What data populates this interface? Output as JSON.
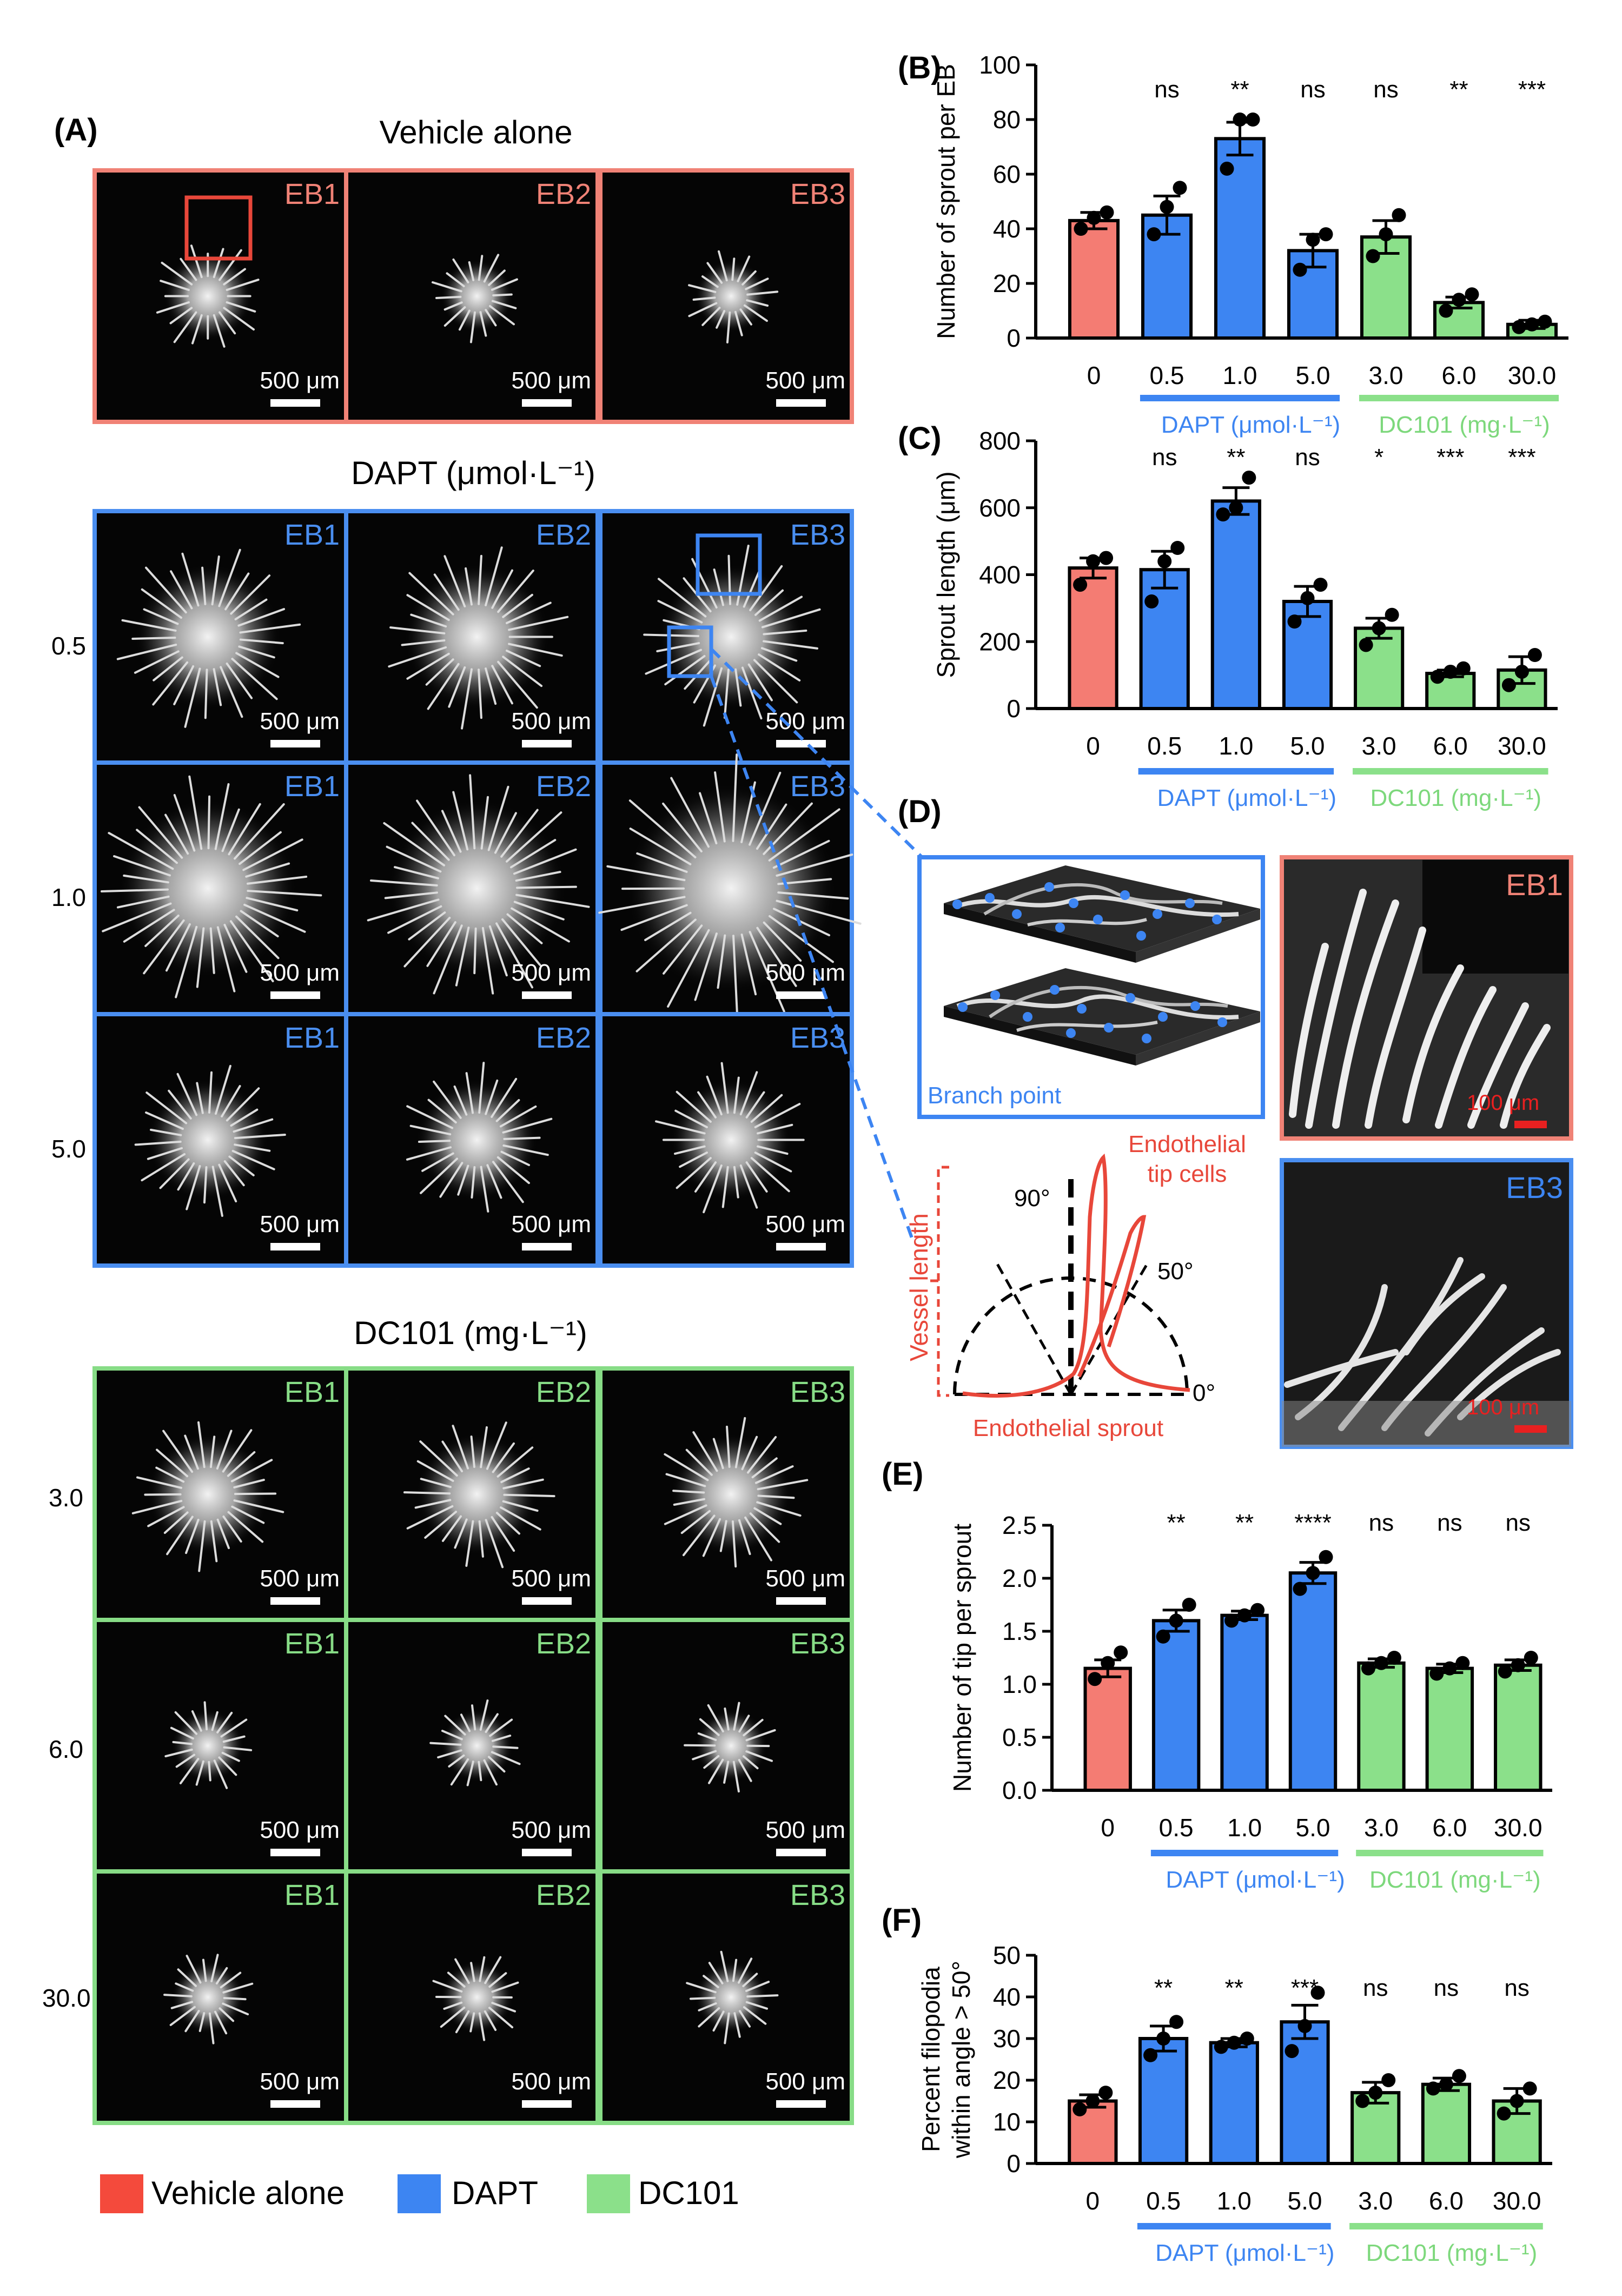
{
  "colors": {
    "vehicle": "#f47c73",
    "vehicle_frame": "#f08276",
    "dapt": "#3d85f2",
    "dapt_frame": "#4a8ef0",
    "dc101": "#8be08a",
    "dc101_frame": "#87dc86",
    "red_accent": "#e8473a",
    "scale_red": "#e82020"
  },
  "panel_a": {
    "label": "(A)",
    "vehicle_title": "Vehicle alone",
    "dapt_title": "DAPT (μmol·L⁻¹)",
    "dc101_title": "DC101 (mg·L⁻¹)",
    "eb_labels": [
      "EB1",
      "EB2",
      "EB3"
    ],
    "scale_text": "500 μm",
    "dapt_doses": [
      "0.5",
      "1.0",
      "5.0"
    ],
    "dc101_doses": [
      "3.0",
      "6.0",
      "30.0"
    ]
  },
  "legend": [
    "Vehicle alone",
    "DAPT",
    "DC101"
  ],
  "group_labels": {
    "dapt": "DAPT (μmol·L⁻¹)",
    "dc101": "DC101 (mg·L⁻¹)"
  },
  "panel_d": {
    "label": "(D)",
    "branch_point": "Branch point",
    "eb1": "EB1",
    "eb3": "EB3",
    "scale_text": "100 μm",
    "vessel_length": "Vessel length",
    "tip_cells_1": "Endothelial",
    "tip_cells_2": "tip cells",
    "sprout": "Endothelial sprout",
    "angle_90": "90°",
    "angle_50": "50°",
    "angle_0": "0°"
  },
  "chart_data": [
    {
      "panel": "(B)",
      "type": "bar",
      "ylabel": "Number of sprout per EB",
      "categories": [
        "0",
        "0.5",
        "1.0",
        "5.0",
        "3.0",
        "6.0",
        "30.0"
      ],
      "groups": [
        "vehicle",
        "dapt",
        "dapt",
        "dapt",
        "dc101",
        "dc101",
        "dc101"
      ],
      "values": [
        43,
        45,
        73,
        32,
        37,
        13,
        5
      ],
      "sem": [
        3,
        7,
        6,
        6,
        6,
        2,
        1.5
      ],
      "points": [
        [
          40,
          44,
          46
        ],
        [
          38,
          48,
          55
        ],
        [
          62,
          80,
          80
        ],
        [
          25,
          36,
          38
        ],
        [
          30,
          38,
          45
        ],
        [
          10,
          14,
          16
        ],
        [
          4,
          5,
          6
        ]
      ],
      "significance": [
        "",
        "ns",
        "**",
        "ns",
        "ns",
        "**",
        "***"
      ],
      "ylim": [
        0,
        100
      ],
      "yticks": [
        "0",
        "20",
        "40",
        "60",
        "80",
        "100"
      ]
    },
    {
      "panel": "(C)",
      "type": "bar",
      "ylabel": "Sprout length (μm)",
      "categories": [
        "0",
        "0.5",
        "1.0",
        "5.0",
        "3.0",
        "6.0",
        "30.0"
      ],
      "groups": [
        "vehicle",
        "dapt",
        "dapt",
        "dapt",
        "dc101",
        "dc101",
        "dc101"
      ],
      "values": [
        420,
        415,
        620,
        320,
        240,
        105,
        115
      ],
      "sem": [
        30,
        55,
        40,
        45,
        30,
        10,
        40
      ],
      "points": [
        [
          370,
          440,
          450
        ],
        [
          320,
          440,
          480
        ],
        [
          580,
          600,
          690
        ],
        [
          260,
          330,
          370
        ],
        [
          190,
          240,
          280
        ],
        [
          95,
          110,
          120
        ],
        [
          70,
          110,
          160
        ]
      ],
      "significance": [
        "",
        "ns",
        "**",
        "ns",
        "*",
        "***",
        "***"
      ],
      "ylim": [
        0,
        800
      ],
      "yticks": [
        "0",
        "200",
        "400",
        "600",
        "800"
      ]
    },
    {
      "panel": "(E)",
      "type": "bar",
      "ylabel": "Number of tip per sprout",
      "categories": [
        "0",
        "0.5",
        "1.0",
        "5.0",
        "3.0",
        "6.0",
        "30.0"
      ],
      "groups": [
        "vehicle",
        "dapt",
        "dapt",
        "dapt",
        "dc101",
        "dc101",
        "dc101"
      ],
      "values": [
        1.15,
        1.6,
        1.65,
        2.05,
        1.2,
        1.15,
        1.18
      ],
      "sem": [
        0.08,
        0.1,
        0.04,
        0.1,
        0.04,
        0.04,
        0.05
      ],
      "points": [
        [
          1.05,
          1.2,
          1.3
        ],
        [
          1.45,
          1.6,
          1.75
        ],
        [
          1.6,
          1.65,
          1.7
        ],
        [
          1.9,
          2.05,
          2.2
        ],
        [
          1.15,
          1.2,
          1.25
        ],
        [
          1.1,
          1.15,
          1.2
        ],
        [
          1.12,
          1.18,
          1.25
        ]
      ],
      "significance": [
        "",
        "**",
        "**",
        "****",
        "ns",
        "ns",
        "ns"
      ],
      "ylim": [
        0,
        2.5
      ],
      "yticks": [
        "0.0",
        "0.5",
        "1.0",
        "1.5",
        "2.0",
        "2.5"
      ]
    },
    {
      "panel": "(F)",
      "type": "bar",
      "ylabel_line1": "Percent filopodia",
      "ylabel_line2": "within angle > 50°",
      "categories": [
        "0",
        "0.5",
        "1.0",
        "5.0",
        "3.0",
        "6.0",
        "30.0"
      ],
      "groups": [
        "vehicle",
        "dapt",
        "dapt",
        "dapt",
        "dc101",
        "dc101",
        "dc101"
      ],
      "values": [
        15,
        30,
        29,
        34,
        17,
        19,
        15
      ],
      "sem": [
        1.5,
        3,
        1,
        4,
        2.5,
        1.5,
        3
      ],
      "points": [
        [
          13,
          15,
          17
        ],
        [
          26,
          30,
          34
        ],
        [
          28,
          29,
          30
        ],
        [
          27,
          33,
          41
        ],
        [
          15,
          17,
          20
        ],
        [
          18,
          19,
          21
        ],
        [
          12,
          15,
          18
        ]
      ],
      "significance": [
        "",
        "**",
        "**",
        "***",
        "ns",
        "ns",
        "ns"
      ],
      "ylim": [
        0,
        50
      ],
      "yticks": [
        "0",
        "10",
        "20",
        "30",
        "40",
        "50"
      ]
    }
  ]
}
